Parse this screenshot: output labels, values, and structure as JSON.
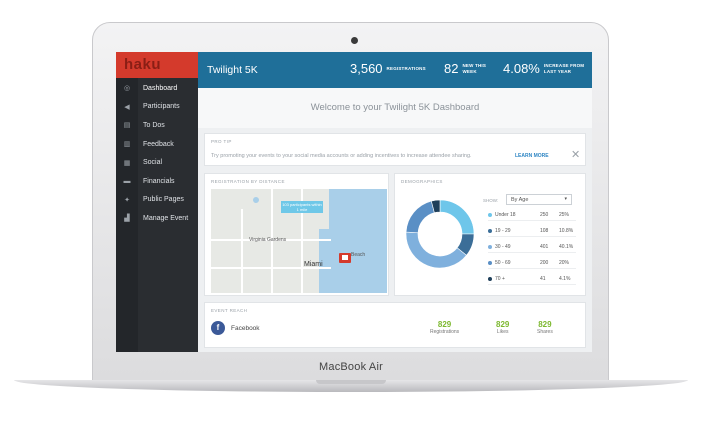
{
  "device": {
    "label": "MacBook Air"
  },
  "app": {
    "logo": "haku"
  },
  "sidebar": {
    "items": [
      {
        "icon": "dashboard-icon",
        "glyph": "◎",
        "label": "Dashboard"
      },
      {
        "icon": "megaphone-icon",
        "glyph": "◀",
        "label": "Participants"
      },
      {
        "icon": "clipboard-icon",
        "glyph": "▤",
        "label": "To Dos"
      },
      {
        "icon": "document-icon",
        "glyph": "▥",
        "label": "Feedback"
      },
      {
        "icon": "calendar-icon",
        "glyph": "▦",
        "label": "Social"
      },
      {
        "icon": "truck-icon",
        "glyph": "▬",
        "label": "Financials"
      },
      {
        "icon": "runner-icon",
        "glyph": "✦",
        "label": "Public Pages"
      },
      {
        "icon": "building-icon",
        "glyph": "▟",
        "label": "Manage Event"
      }
    ]
  },
  "header": {
    "event_title": "Twilight 5K",
    "stats": [
      {
        "value": "3,560",
        "label": "REGISTRATIONS"
      },
      {
        "value": "82",
        "label": "NEW THIS WEEK"
      },
      {
        "value": "4.08%",
        "label": "INCREASE FROM LAST YEAR"
      }
    ]
  },
  "welcome": "Welcome to your Twilight 5K Dashboard",
  "protip": {
    "heading": "PRO TIP",
    "text": "Try promoting your events to your social media accounts or adding incentives to increase attendee sharing.",
    "link": "LEARN MORE",
    "close": "✕"
  },
  "registration": {
    "heading": "REGISTRATION BY DISTANCE",
    "callout": "103 participants within 1 mile",
    "labels": {
      "city": "Miami",
      "beach": "Beach",
      "gardens": "Virginia Gardens"
    }
  },
  "demographics": {
    "heading": "DEMOGRAPHICS",
    "show_label": "SHOW:",
    "select_value": "By Age",
    "rows": [
      {
        "name": "Under 18",
        "count": "250",
        "pct": "25%",
        "color": "#6ec6ea",
        "share": 25
      },
      {
        "name": "19 - 29",
        "count": "108",
        "pct": "10.8%",
        "color": "#3b6e98",
        "share": 10.8
      },
      {
        "name": "30 - 49",
        "count": "401",
        "pct": "40.1%",
        "color": "#7fb0dd",
        "share": 40.1
      },
      {
        "name": "50 - 69",
        "count": "200",
        "pct": "20%",
        "color": "#5a8fc5",
        "share": 20
      },
      {
        "name": "70 +",
        "count": "41",
        "pct": "4.1%",
        "color": "#1f3f5a",
        "share": 4.1
      }
    ]
  },
  "event_reach": {
    "heading": "EVENT REACH",
    "network": "Facebook",
    "icon": "f",
    "metrics": [
      {
        "value": "829",
        "label": "Registrations"
      },
      {
        "value": "829",
        "label": "Likes"
      },
      {
        "value": "829",
        "label": "Shares"
      }
    ]
  }
}
